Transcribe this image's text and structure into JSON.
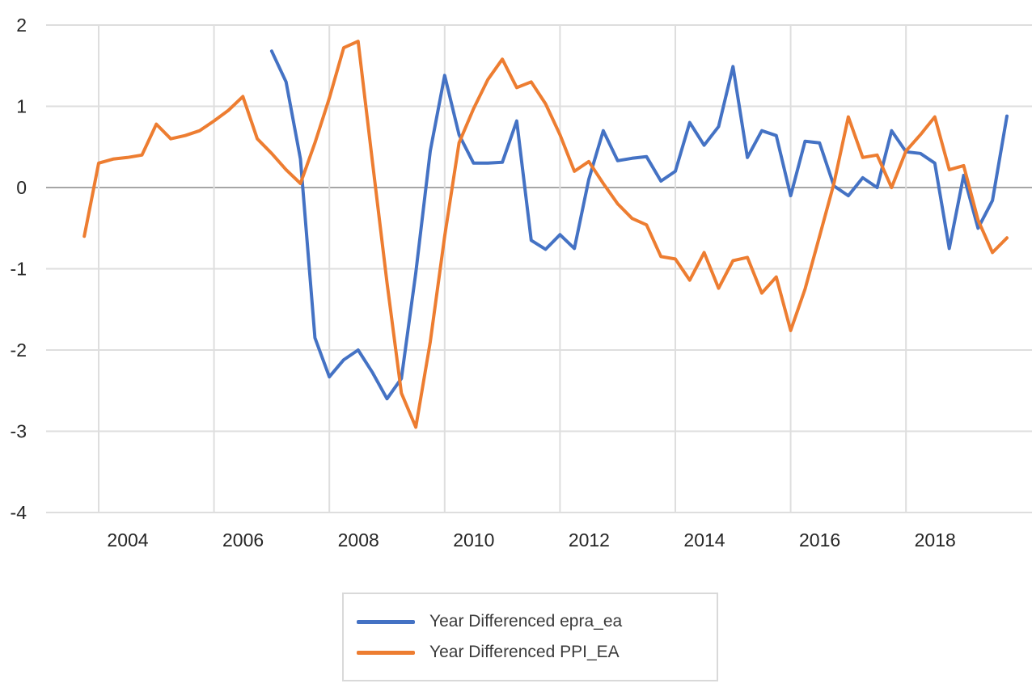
{
  "chart_data": {
    "type": "line",
    "title": "",
    "xlabel": "",
    "ylabel": "",
    "grid": true,
    "x_axis": {
      "tick_years": [
        2004,
        2006,
        2008,
        2010,
        2012,
        2014,
        2016,
        2018
      ]
    },
    "y_axis": {
      "ticks": [
        2,
        1,
        0,
        -1,
        -2,
        -3,
        -4
      ],
      "min": -4,
      "max": 2
    },
    "colors": {
      "gridline": "#dedede",
      "zero_line": "#a6a6a6",
      "axis_text": "#262626",
      "legend_border": "#d9d9d9"
    },
    "legend": {
      "position": "bottom-center",
      "orientation": "vertical"
    },
    "series": [
      {
        "name": "Year Differenced epra_ea",
        "color": "#4472c4",
        "start_year": 2007.0,
        "period_years": 0.25,
        "values": [
          1.68,
          1.3,
          0.35,
          -1.85,
          -2.33,
          -2.12,
          -2.0,
          -2.28,
          -2.6,
          -2.35,
          -1.05,
          0.45,
          1.38,
          0.65,
          0.3,
          0.3,
          0.31,
          0.82,
          -0.65,
          -0.76,
          -0.58,
          -0.75,
          0.1,
          0.7,
          0.33,
          0.36,
          0.38,
          0.08,
          0.2,
          0.8,
          0.52,
          0.75,
          1.49,
          0.37,
          0.7,
          0.64,
          -0.1,
          0.57,
          0.55,
          0.02,
          -0.1,
          0.12,
          0.0,
          0.7,
          0.44,
          0.42,
          0.3,
          -0.75,
          0.15,
          -0.5,
          -0.16,
          0.88
        ]
      },
      {
        "name": "Year Differenced PPI_EA",
        "color": "#ed7d31",
        "start_year": 2003.75,
        "period_years": 0.25,
        "values": [
          -0.6,
          0.3,
          0.35,
          0.37,
          0.4,
          0.78,
          0.6,
          0.64,
          0.7,
          0.82,
          0.95,
          1.12,
          0.6,
          0.42,
          0.22,
          0.05,
          0.55,
          1.1,
          1.72,
          1.8,
          0.3,
          -1.17,
          -2.53,
          -2.95,
          -1.9,
          -0.6,
          0.55,
          0.97,
          1.33,
          1.58,
          1.23,
          1.3,
          1.03,
          0.65,
          0.2,
          0.32,
          0.05,
          -0.2,
          -0.38,
          -0.46,
          -0.85,
          -0.88,
          -1.14,
          -0.8,
          -1.24,
          -0.9,
          -0.86,
          -1.3,
          -1.1,
          -1.76,
          -1.25,
          -0.6,
          0.05,
          0.87,
          0.37,
          0.4,
          0.0,
          0.45,
          0.65,
          0.87,
          0.22,
          0.27,
          -0.4,
          -0.8,
          -0.62
        ]
      }
    ]
  }
}
